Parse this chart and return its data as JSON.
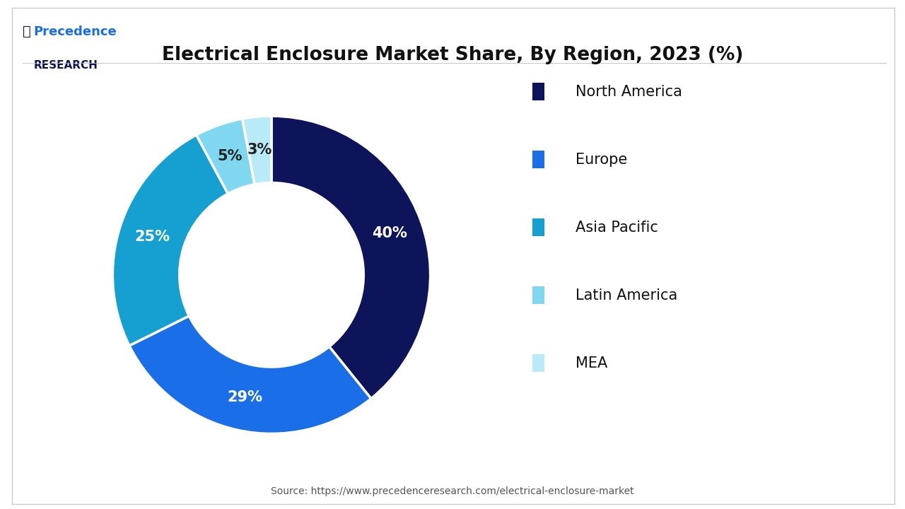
{
  "title": "Electrical Enclosure Market Share, By Region, 2023 (%)",
  "segments": [
    {
      "label": "North America",
      "value": 40,
      "color": "#0d1459",
      "pct_label": "40%",
      "text_color": "white"
    },
    {
      "label": "Europe",
      "value": 29,
      "color": "#1a6fe8",
      "pct_label": "29%",
      "text_color": "white"
    },
    {
      "label": "Asia Pacific",
      "value": 25,
      "color": "#15a0d1",
      "pct_label": "25%",
      "text_color": "white"
    },
    {
      "label": "Latin America",
      "value": 5,
      "color": "#7fd8ef",
      "pct_label": "5%",
      "text_color": "#222222"
    },
    {
      "label": "MEA",
      "value": 3,
      "color": "#b8eaf8",
      "pct_label": "3%",
      "text_color": "#222222"
    }
  ],
  "source_text": "Source: https://www.precedenceresearch.com/electrical-enclosure-market",
  "background_color": "#ffffff",
  "title_fontsize": 19,
  "legend_fontsize": 15,
  "label_fontsize": 15,
  "start_angle": 90,
  "figsize": [
    12.8,
    7.2
  ],
  "dpi": 100
}
